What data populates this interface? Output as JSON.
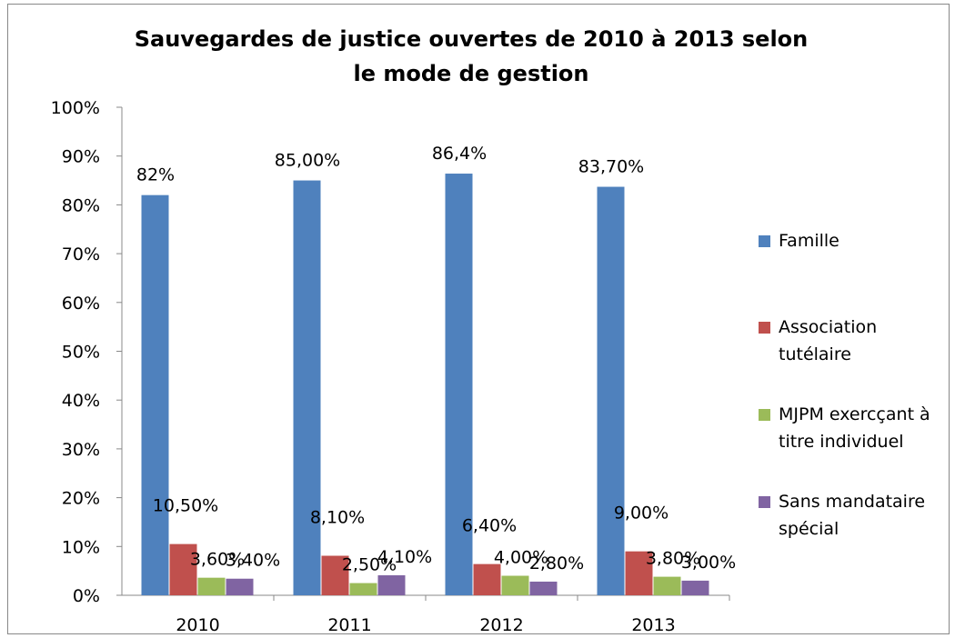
{
  "chart_data": {
    "type": "bar",
    "title": "Sauvegardes de justice ouvertes de 2010 à 2013 selon le mode de gestion",
    "categories": [
      "2010",
      "2011",
      "2012",
      "2013"
    ],
    "series": [
      {
        "name": "Famille",
        "color": "#4f81bd",
        "values": [
          82,
          85,
          86.4,
          83.7
        ],
        "value_labels": [
          "82%",
          "85,00%",
          "86,4%",
          "83,70%"
        ]
      },
      {
        "name": "Association tutélaire",
        "color": "#c0504d",
        "values": [
          10.5,
          8.1,
          6.4,
          9
        ],
        "value_labels": [
          "10,50%",
          "8,10%",
          "6,40%",
          "9,00%"
        ]
      },
      {
        "name": "MJPM exercçant à titre individuel",
        "color": "#9bbb59",
        "values": [
          3.6,
          2.5,
          4,
          3.8
        ],
        "value_labels": [
          "3,60%",
          "2,50%",
          "4,00%",
          "3,80%"
        ]
      },
      {
        "name": "Sans mandataire spécial",
        "color": "#8064a2",
        "values": [
          3.4,
          4.1,
          2.8,
          3
        ],
        "value_labels": [
          "3,40%",
          "4,10%",
          "2,80%",
          "3,00%"
        ]
      }
    ],
    "ylim": [
      0,
      100
    ],
    "yticks": [
      {
        "value": 0,
        "label": "0%"
      },
      {
        "value": 10,
        "label": "10%"
      },
      {
        "value": 20,
        "label": "20%"
      },
      {
        "value": 30,
        "label": "30%"
      },
      {
        "value": 40,
        "label": "40%"
      },
      {
        "value": 50,
        "label": "50%"
      },
      {
        "value": 60,
        "label": "60%"
      },
      {
        "value": 70,
        "label": "70%"
      },
      {
        "value": 80,
        "label": "80%"
      },
      {
        "value": 90,
        "label": "90%"
      },
      {
        "value": 100,
        "label": "100%"
      }
    ],
    "legend": "right"
  }
}
